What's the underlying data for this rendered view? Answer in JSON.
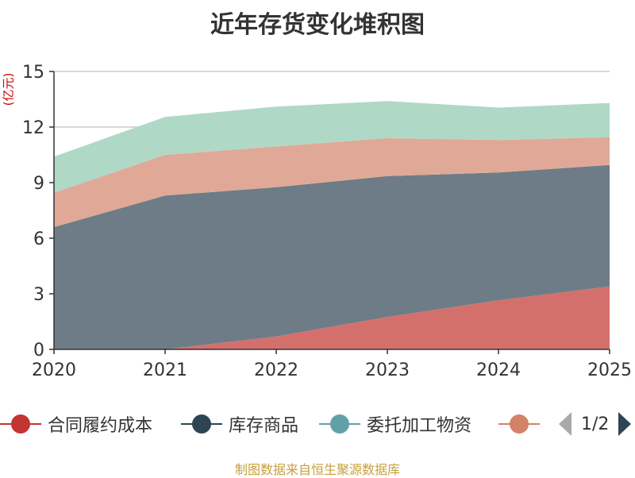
{
  "title": "近年存货变化堆积图",
  "y_unit": "(亿元)",
  "source": "制图数据来自恒生聚源数据库",
  "legend": {
    "items": [
      {
        "label": "合同履约成本",
        "color": "#c23531"
      },
      {
        "label": "库存商品",
        "color": "#2f4554"
      },
      {
        "label": "委托加工物资",
        "color": "#61a0a8"
      },
      {
        "label": "",
        "color": "#d48265"
      }
    ],
    "page_indicator": "1/2"
  },
  "chart_data": {
    "type": "area",
    "stacked": true,
    "x": [
      "2020",
      "2021",
      "2022",
      "2023",
      "2024",
      "2025"
    ],
    "ylim": [
      0,
      15
    ],
    "yticks": [
      0,
      3,
      6,
      9,
      12,
      15
    ],
    "ylabel": "(亿元)",
    "grid": true,
    "series": [
      {
        "name": "合同履约成本",
        "color": "#d4706c",
        "values": [
          null,
          0,
          0.7,
          1.75,
          2.65,
          3.4
        ]
      },
      {
        "name": "库存商品",
        "color": "#6e7c87",
        "values": [
          6.6,
          8.3,
          8.05,
          7.6,
          6.9,
          6.55
        ]
      },
      {
        "name": "委托加工物资",
        "color": "#e0a896",
        "values": [
          1.85,
          2.2,
          2.2,
          2.05,
          1.75,
          1.5
        ]
      },
      {
        "name": "",
        "color": "#b0d8c7",
        "values": [
          1.95,
          2.05,
          2.15,
          2.0,
          1.75,
          1.85
        ]
      }
    ]
  }
}
